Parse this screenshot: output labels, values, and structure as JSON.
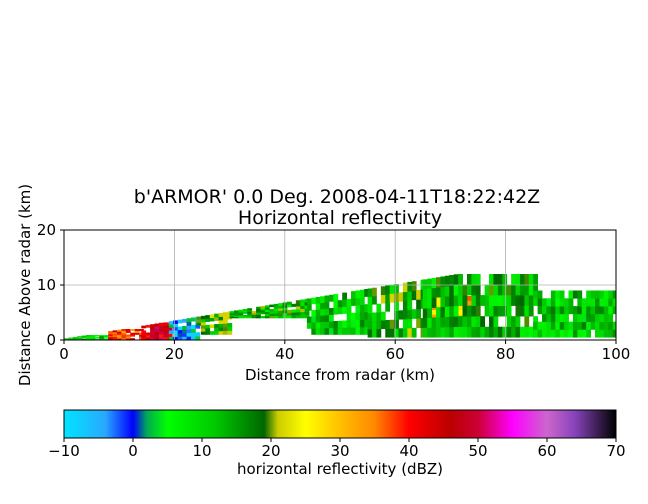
{
  "chart_data": {
    "type": "heatmap",
    "title_line1": "b'ARMOR' 0.0 Deg. 2008-04-11T18:22:42Z",
    "title_line2": "Horizontal reflectivity",
    "xlabel": "Distance from radar (km)",
    "ylabel": "Distance Above radar  (km)",
    "xlim": [
      0,
      100
    ],
    "ylim": [
      0,
      20
    ],
    "xticks": [
      0,
      20,
      40,
      60,
      80,
      100
    ],
    "yticks": [
      0,
      10,
      20
    ],
    "grid": true,
    "colorbar": {
      "label": "horizontal reflectivity (dBZ)",
      "range": [
        -10,
        70
      ],
      "ticks": [
        -10,
        0,
        10,
        20,
        30,
        40,
        50,
        60,
        70
      ],
      "stops": [
        {
          "value": -10,
          "color": "#00e5ff"
        },
        {
          "value": -4,
          "color": "#29a8ff"
        },
        {
          "value": 0,
          "color": "#0000ff"
        },
        {
          "value": 2,
          "color": "#00aa55"
        },
        {
          "value": 5,
          "color": "#00ff00"
        },
        {
          "value": 12,
          "color": "#00c800"
        },
        {
          "value": 19,
          "color": "#006600"
        },
        {
          "value": 21,
          "color": "#cccc00"
        },
        {
          "value": 25,
          "color": "#ffff00"
        },
        {
          "value": 30,
          "color": "#ffc000"
        },
        {
          "value": 35,
          "color": "#ff8800"
        },
        {
          "value": 40,
          "color": "#ff0000"
        },
        {
          "value": 46,
          "color": "#bb0000"
        },
        {
          "value": 50,
          "color": "#cc0033"
        },
        {
          "value": 55,
          "color": "#ff00ff"
        },
        {
          "value": 60,
          "color": "#cc66cc"
        },
        {
          "value": 64,
          "color": "#8844bb"
        },
        {
          "value": 70,
          "color": "#000000"
        }
      ]
    },
    "echo_regions": [
      {
        "x0": 0,
        "x1": 10,
        "ybot": 0,
        "ytop": 0.9,
        "dbz": 10
      },
      {
        "x0": 8,
        "x1": 14,
        "ybot": 0,
        "ytop": 2.0,
        "dbz": 38
      },
      {
        "x0": 14,
        "x1": 19,
        "ybot": 0,
        "ytop": 3.2,
        "dbz": 45
      },
      {
        "x0": 19,
        "x1": 24,
        "ybot": 0,
        "ytop": 4.3,
        "dbz": -3
      },
      {
        "x0": 24,
        "x1": 30,
        "ybot": 1.0,
        "ytop": 5.5,
        "dbz": 17
      },
      {
        "x0": 30,
        "x1": 44,
        "ybot": 4.0,
        "ytop": 8.5,
        "dbz": 14
      },
      {
        "x0": 44,
        "x1": 55,
        "ybot": 1.0,
        "ytop": 11.5,
        "dbz": 11
      },
      {
        "x0": 55,
        "x1": 65,
        "ybot": 0.5,
        "ytop": 12.5,
        "dbz": 15
      },
      {
        "x0": 65,
        "x1": 75,
        "ybot": 3.0,
        "ytop": 8.0,
        "dbz": 30
      },
      {
        "x0": 65,
        "x1": 85,
        "ybot": 0.5,
        "ytop": 12.0,
        "dbz": 13
      },
      {
        "x0": 85,
        "x1": 100,
        "ybot": 0.5,
        "ytop": 9.0,
        "dbz": 11
      }
    ]
  }
}
